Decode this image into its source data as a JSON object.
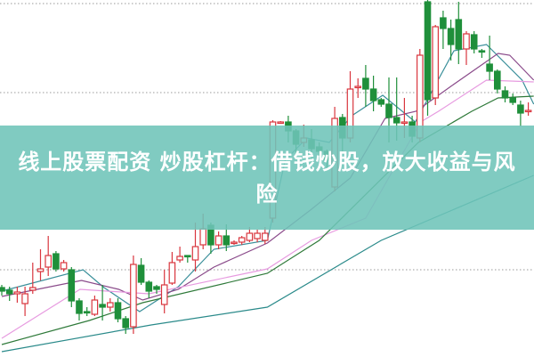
{
  "banner": {
    "title": "线上股票配资 炒股杠杆：借钱炒股，放大收益与风险",
    "background_color": "#6ec4b8",
    "text_color": "#ffffff"
  },
  "chart_data": {
    "type": "candlestick",
    "title": "",
    "xlabel": "",
    "ylabel": "",
    "axes_visible": false,
    "grid": "dotted horizontal",
    "gridline_values": [
      396,
      296,
      97
    ],
    "ylim": [
      0,
      400
    ],
    "colors": {
      "up": "#d9363e",
      "down": "#1f8f3a",
      "grid": "#9a9a9a"
    },
    "candles_ohlc_order": "o,c,h,l",
    "candles": [
      [
        77,
        73,
        80,
        68
      ],
      [
        74,
        70,
        78,
        62
      ],
      [
        70,
        72,
        78,
        60
      ],
      [
        59,
        70,
        78,
        45
      ],
      [
        74,
        77,
        105,
        70
      ],
      [
        95,
        98,
        120,
        85
      ],
      [
        100,
        113,
        135,
        90
      ],
      [
        115,
        98,
        118,
        95
      ],
      [
        98,
        105,
        108,
        95
      ],
      [
        97,
        62,
        100,
        55
      ],
      [
        62,
        48,
        65,
        40
      ],
      [
        50,
        49,
        55,
        45
      ],
      [
        47,
        63,
        68,
        45
      ],
      [
        58,
        55,
        80,
        40
      ],
      [
        55,
        60,
        65,
        50
      ],
      [
        60,
        42,
        65,
        38
      ],
      [
        42,
        32,
        45,
        25
      ],
      [
        33,
        103,
        113,
        25
      ],
      [
        102,
        83,
        110,
        80
      ],
      [
        83,
        73,
        85,
        65
      ],
      [
        78,
        75,
        80,
        70
      ],
      [
        58,
        80,
        97,
        48
      ],
      [
        82,
        105,
        117,
        80
      ],
      [
        108,
        112,
        123,
        105
      ],
      [
        113,
        112,
        113,
        105
      ],
      [
        108,
        123,
        150,
        95
      ],
      [
        125,
        143,
        160,
        120
      ],
      [
        147,
        125,
        150,
        115
      ],
      [
        125,
        135,
        140,
        120
      ],
      [
        135,
        125,
        148,
        118
      ],
      [
        127,
        128,
        130,
        125
      ],
      [
        128,
        133,
        135,
        125
      ],
      [
        130,
        138,
        145,
        128
      ],
      [
        132,
        138,
        142,
        128
      ],
      [
        130,
        138,
        145,
        126
      ],
      [
        155,
        263,
        265,
        150
      ],
      [
        263,
        263,
        264,
        262
      ],
      [
        263,
        253,
        270,
        240
      ],
      [
        253,
        238,
        255,
        225
      ],
      [
        240,
        245,
        260,
        235
      ],
      [
        243,
        233,
        255,
        215
      ],
      [
        235,
        230,
        240,
        225
      ],
      [
        230,
        220,
        232,
        210
      ],
      [
        190,
        267,
        280,
        185
      ],
      [
        268,
        245,
        272,
        230
      ],
      [
        245,
        300,
        320,
        240
      ],
      [
        302,
        303,
        312,
        290
      ],
      [
        312,
        300,
        327,
        280
      ],
      [
        300,
        287,
        315,
        275
      ],
      [
        288,
        283,
        290,
        280
      ],
      [
        283,
        268,
        313,
        240
      ],
      [
        268,
        262,
        313,
        242
      ],
      [
        263,
        263,
        290,
        245
      ],
      [
        263,
        247,
        270,
        240
      ],
      [
        245,
        338,
        345,
        240
      ],
      [
        398,
        288,
        400,
        270
      ],
      [
        290,
        370,
        372,
        282
      ],
      [
        380,
        368,
        388,
        345
      ],
      [
        368,
        350,
        378,
        332
      ],
      [
        378,
        345,
        398,
        328
      ],
      [
        345,
        362,
        365,
        327
      ],
      [
        361,
        345,
        365,
        340
      ],
      [
        343,
        342,
        345,
        335
      ],
      [
        328,
        320,
        360,
        310
      ],
      [
        320,
        300,
        322,
        295
      ],
      [
        298,
        290,
        303,
        285
      ],
      [
        290,
        285,
        295,
        282
      ],
      [
        282,
        273,
        287,
        258
      ],
      [
        275,
        276,
        285,
        270
      ]
    ],
    "moving_averages": [
      {
        "color": "#3a8f9a",
        "points": [
          [
            0,
            73
          ],
          [
            10.5,
            97
          ],
          [
            13.2,
            77
          ],
          [
            17.8,
            50
          ],
          [
            22.8,
            78
          ],
          [
            27.4,
            120
          ],
          [
            34.3,
            130
          ],
          [
            36.6,
            220
          ],
          [
            39.4,
            245
          ],
          [
            42.3,
            240
          ],
          [
            45.2,
            270
          ],
          [
            49.2,
            293
          ],
          [
            53.4,
            263
          ],
          [
            58.4,
            343
          ],
          [
            62.6,
            350
          ],
          [
            67.2,
            310
          ],
          [
            68.7,
            283
          ]
        ]
      },
      {
        "color": "#8a4a8a",
        "points": [
          [
            0,
            67
          ],
          [
            10.3,
            85
          ],
          [
            15.1,
            75
          ],
          [
            18.2,
            63
          ],
          [
            22.8,
            75
          ],
          [
            27.4,
            100
          ],
          [
            34.3,
            127
          ],
          [
            40,
            165
          ],
          [
            45,
            200
          ],
          [
            49.5,
            267
          ],
          [
            53.5,
            275
          ],
          [
            58,
            303
          ],
          [
            64.1,
            340
          ],
          [
            65.6,
            338
          ],
          [
            68.7,
            310
          ]
        ]
      },
      {
        "color": "#e79be0",
        "points": [
          [
            0,
            20
          ],
          [
            10.1,
            75
          ],
          [
            19,
            70
          ],
          [
            34.3,
            98
          ],
          [
            40,
            130
          ],
          [
            47,
            155
          ],
          [
            54.1,
            263
          ],
          [
            56.4,
            275
          ],
          [
            62.6,
            310
          ],
          [
            68.7,
            308
          ]
        ]
      },
      {
        "color": "#2f7a3a",
        "points": [
          [
            0,
            13
          ],
          [
            11.3,
            40
          ],
          [
            18.2,
            60
          ],
          [
            34.3,
            93
          ],
          [
            41,
            130
          ],
          [
            53.8,
            240
          ],
          [
            60.7,
            275
          ],
          [
            64.1,
            290
          ],
          [
            68.7,
            292
          ]
        ]
      },
      {
        "color": "#2a8a8a",
        "points": [
          [
            0,
            5
          ],
          [
            19.3,
            35
          ],
          [
            34.3,
            55
          ],
          [
            49,
            130
          ],
          [
            68.7,
            203
          ]
        ]
      }
    ]
  }
}
